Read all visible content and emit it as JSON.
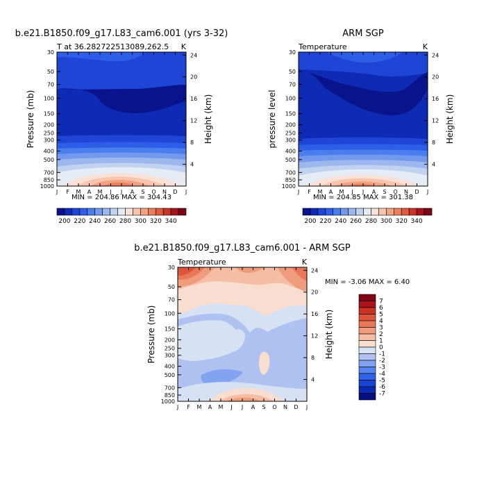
{
  "months": [
    "J",
    "F",
    "M",
    "A",
    "M",
    "J",
    "J",
    "A",
    "S",
    "O",
    "N",
    "D",
    "J"
  ],
  "pressure_ticks": [
    30,
    50,
    70,
    100,
    150,
    200,
    250,
    300,
    400,
    500,
    700,
    850,
    1000
  ],
  "height_ticks": [
    24,
    20,
    16,
    12,
    8,
    4
  ],
  "colors_abs": [
    "#08138c",
    "#0d2bb5",
    "#1e45d6",
    "#2e5ee8",
    "#4a7ded",
    "#7399ee",
    "#9cb7ee",
    "#c0d2f0",
    "#e5ecf5",
    "#f8e1d6",
    "#f7c4ae",
    "#f1a283",
    "#eb7e5e",
    "#e05a3e",
    "#cc3425",
    "#a5141a",
    "#7d0414"
  ],
  "colors_diff": [
    "#06117d",
    "#0b28b0",
    "#1a43d4",
    "#2f64e8",
    "#5584ee",
    "#82a3f0",
    "#aec1f0",
    "#d6e1f4",
    "#f9ddcf",
    "#f5bea4",
    "#ef9c7c",
    "#e97858",
    "#de563a",
    "#cc3224",
    "#a8141a",
    "#7f0414"
  ],
  "chart_data": [
    {
      "type": "heatmap",
      "title": "b.e21.B1850.f09_g17.L83_cam6.001 (yrs 3-32)",
      "left_label": "T at 36.282722513089,262.5",
      "right_label": "K",
      "ylabel": "Pressure (mb)",
      "y2label": "Height (km)",
      "stats": "MIN = 204.86  MAX = 304.43",
      "min": 204.86,
      "max": 304.43,
      "colorbar": {
        "labels": [
          "200",
          "220",
          "240",
          "260",
          "280",
          "300",
          "320",
          "340"
        ]
      }
    },
    {
      "type": "heatmap",
      "title": "ARM SGP",
      "left_label": "Temperature",
      "right_label": "K",
      "ylabel": "pressure level",
      "y2label": "Height (km)",
      "stats": "MIN = 204.85  MAX = 301.38",
      "min": 204.85,
      "max": 301.38,
      "colorbar": {
        "labels": [
          "200",
          "220",
          "240",
          "260",
          "280",
          "300",
          "320",
          "340"
        ]
      }
    },
    {
      "type": "heatmap",
      "title": "b.e21.B1850.f09_g17.L83_cam6.001 - ARM SGP",
      "left_label": "Temperature",
      "right_label": "K",
      "ylabel": "Pressure (mb)",
      "y2label": "Height (km)",
      "stats": "MIN = -3.06 MAX = 6.40",
      "min": -3.06,
      "max": 6.4,
      "colorbar": {
        "labels": [
          "7",
          "6",
          "5",
          "4",
          "3",
          "2",
          "1",
          "0",
          "-1",
          "-2",
          "-3",
          "-4",
          "-5",
          "-6",
          "-7"
        ]
      }
    }
  ]
}
